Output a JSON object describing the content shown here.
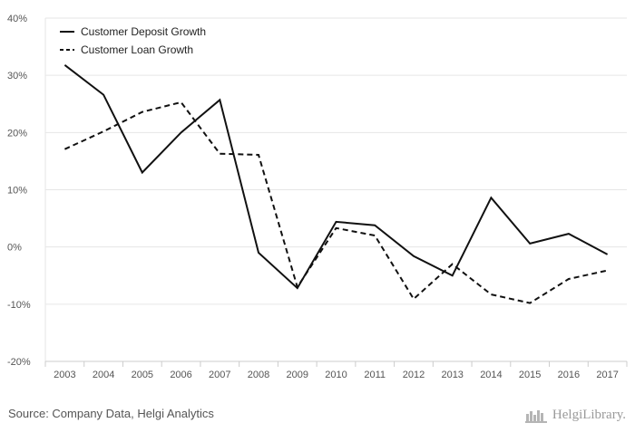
{
  "chart_data": {
    "type": "line",
    "title": "",
    "xlabel": "",
    "ylabel": "",
    "x": [
      "2003",
      "2004",
      "2005",
      "2006",
      "2007",
      "2008",
      "2009",
      "2010",
      "2011",
      "2012",
      "2013",
      "2014",
      "2015",
      "2016",
      "2017"
    ],
    "ylim": [
      -20,
      40
    ],
    "y_ticks": [
      -20,
      -10,
      0,
      10,
      20,
      30,
      40
    ],
    "y_tick_labels": [
      "-20%",
      "-10%",
      "0%",
      "10%",
      "20%",
      "30%",
      "40%"
    ],
    "grid": true,
    "legend_position": "top-left",
    "series": [
      {
        "name": "Customer Deposit Growth",
        "style": "solid",
        "color": "#111111",
        "values": [
          31.8,
          26.6,
          13.0,
          20.0,
          25.7,
          -1.0,
          -7.2,
          4.4,
          3.8,
          -1.6,
          -5.0,
          8.6,
          0.6,
          2.3,
          -1.3
        ]
      },
      {
        "name": "Customer Loan Growth",
        "style": "dashed",
        "color": "#111111",
        "values": [
          17.1,
          20.2,
          23.6,
          25.3,
          16.3,
          16.1,
          -7.0,
          3.3,
          2.0,
          -9.1,
          -3.0,
          -8.3,
          -9.8,
          -5.6,
          -4.1
        ]
      }
    ]
  },
  "footer": {
    "source": "Source: Company Data, Helgi Analytics",
    "brand": "HelgiLibrary."
  }
}
